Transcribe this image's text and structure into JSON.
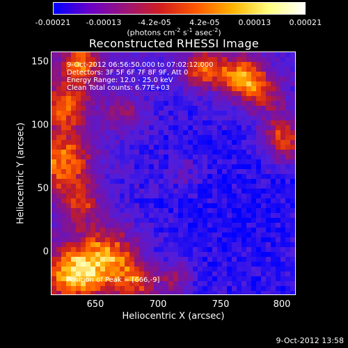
{
  "colorbar": {
    "ticks": [
      "-0.00021",
      "-0.00013",
      "-4.2e-05",
      "4.2e-05",
      "0.00013",
      "0.00021"
    ],
    "units": "(photons cm",
    "units_exp1": "-2",
    "units_mid": " s",
    "units_exp2": "-1",
    "units_end": " asec",
    "units_exp3": "-2",
    "units_close": ")",
    "gradient": [
      "#0000ff",
      "#6a00c8",
      "#9a1478",
      "#d21e1e",
      "#ff5a00",
      "#ffb400",
      "#ffff80",
      "#ffffff"
    ]
  },
  "title": "Reconstructed RHESSI Image",
  "annotations": {
    "time_range": "9-Oct-2012 06:56:50.000 to 07:02:12.000",
    "detectors": "Detectors: 3F 5F 6F 7F 8F 9F, Att 0",
    "energy": "Energy Range: 12.0 - 25.0 keV",
    "clean": "Clean     Total counts: 6.77E+03",
    "peak": "Position of Peak = [666,-9]"
  },
  "x_axis": {
    "label": "Heliocentric X (arcsec)",
    "ticks": [
      "650",
      "700",
      "750",
      "800"
    ]
  },
  "y_axis": {
    "label": "Heliocentric Y (arcsec)",
    "ticks": [
      "150",
      "100",
      "50",
      "0"
    ]
  },
  "timestamp": "9-Oct-2012 13:58"
}
